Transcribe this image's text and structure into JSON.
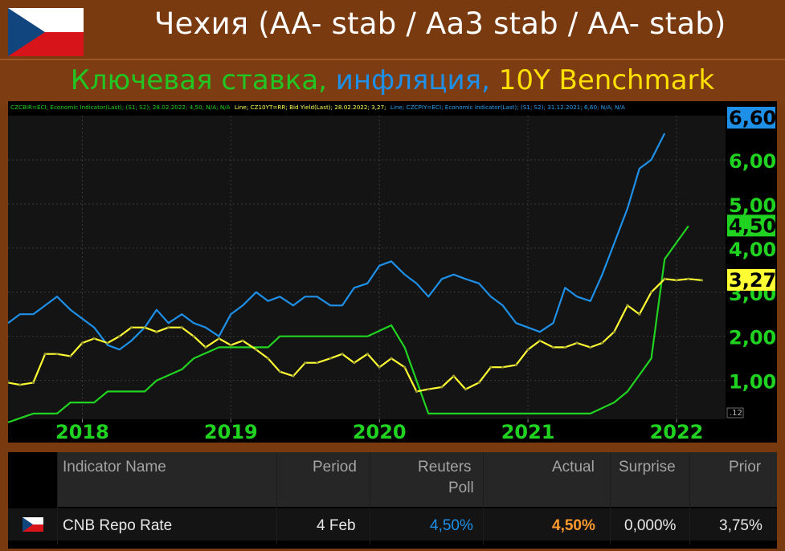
{
  "header": {
    "title": "Чехия (AA- stab / Aa3 stab / AA- stab)",
    "subtitle_part1": "Ключевая ставка,",
    "subtitle_part2": "инфляция,",
    "subtitle_part3": "10Y Benchmark",
    "flag_icon": "czech-flag-icon"
  },
  "chart_legend": {
    "seg1": "CZCBIR=ECI; Economic Indicator(Last); (S1; S2); 28.02.2022; 4,50; N/A; N/A",
    "seg2": "Line; CZ10YT=RR; Bid Yield(Last); 28.02.2022; 3,27;",
    "seg3": "Line; CZCPIY=ECI; Economic Indicator(Last); (S1; S2); 31.12.2021; 6,60; N/A; N/A"
  },
  "chart_data": {
    "type": "line",
    "title": "",
    "xlabel": "",
    "ylabel": "",
    "xlim": [
      2017.5,
      2022.33
    ],
    "ylim": [
      0.12,
      7.0
    ],
    "x_ticks": [
      2018,
      2019,
      2020,
      2021,
      2022
    ],
    "x_tick_labels": [
      "2018",
      "2019",
      "2020",
      "2021",
      "2022"
    ],
    "y_ticks": [
      1,
      2,
      3,
      4,
      5,
      6
    ],
    "y_tick_labels": [
      "1,00",
      "2,00",
      "3,00",
      "4,00",
      "5,00",
      "6,00"
    ],
    "y_min_label": ".12",
    "grid": true,
    "series": [
      {
        "name": "CZCPIY=ECI",
        "color": "#1e90e8",
        "last_label": "6,60",
        "x": [
          2017.5,
          2017.58,
          2017.67,
          2017.75,
          2017.83,
          2017.92,
          2018.0,
          2018.08,
          2018.17,
          2018.25,
          2018.33,
          2018.42,
          2018.5,
          2018.58,
          2018.67,
          2018.75,
          2018.83,
          2018.92,
          2019.0,
          2019.08,
          2019.17,
          2019.25,
          2019.33,
          2019.42,
          2019.5,
          2019.58,
          2019.67,
          2019.75,
          2019.83,
          2019.92,
          2020.0,
          2020.08,
          2020.17,
          2020.25,
          2020.33,
          2020.42,
          2020.5,
          2020.58,
          2020.67,
          2020.75,
          2020.83,
          2020.92,
          2021.0,
          2021.08,
          2021.17,
          2021.25,
          2021.33,
          2021.42,
          2021.5,
          2021.58,
          2021.67,
          2021.75,
          2021.83,
          2021.92
        ],
        "values": [
          2.3,
          2.5,
          2.5,
          2.7,
          2.9,
          2.6,
          2.4,
          2.2,
          1.8,
          1.7,
          1.9,
          2.2,
          2.6,
          2.3,
          2.5,
          2.3,
          2.2,
          2.0,
          2.5,
          2.7,
          3.0,
          2.8,
          2.9,
          2.7,
          2.9,
          2.9,
          2.7,
          2.7,
          3.1,
          3.2,
          3.6,
          3.7,
          3.4,
          3.2,
          2.9,
          3.3,
          3.4,
          3.3,
          3.2,
          2.9,
          2.7,
          2.3,
          2.2,
          2.1,
          2.3,
          3.1,
          2.9,
          2.8,
          3.4,
          4.1,
          4.9,
          5.8,
          6.0,
          6.6
        ]
      },
      {
        "name": "CZCBIR=ECI",
        "color": "#21d321",
        "last_label": "4,50",
        "x": [
          2017.5,
          2017.67,
          2017.75,
          2017.83,
          2017.92,
          2018.0,
          2018.08,
          2018.17,
          2018.42,
          2018.5,
          2018.67,
          2018.75,
          2018.92,
          2019.0,
          2019.25,
          2019.33,
          2019.92,
          2020.08,
          2020.17,
          2020.25,
          2020.33,
          2020.67,
          2020.92,
          2021.33,
          2021.42,
          2021.58,
          2021.67,
          2021.83,
          2021.92,
          2022.08
        ],
        "values": [
          0.05,
          0.25,
          0.25,
          0.25,
          0.5,
          0.5,
          0.5,
          0.75,
          0.75,
          1.0,
          1.25,
          1.5,
          1.75,
          1.75,
          1.75,
          2.0,
          2.0,
          2.25,
          1.75,
          1.0,
          0.25,
          0.25,
          0.25,
          0.25,
          0.25,
          0.5,
          0.75,
          1.5,
          3.75,
          4.5
        ]
      },
      {
        "name": "CZ10YT=RR",
        "color": "#ffff33",
        "last_label": "3,27",
        "x": [
          2017.5,
          2017.58,
          2017.67,
          2017.75,
          2017.83,
          2017.92,
          2018.0,
          2018.08,
          2018.17,
          2018.25,
          2018.33,
          2018.42,
          2018.5,
          2018.58,
          2018.67,
          2018.75,
          2018.83,
          2018.92,
          2019.0,
          2019.08,
          2019.17,
          2019.25,
          2019.33,
          2019.42,
          2019.5,
          2019.58,
          2019.67,
          2019.75,
          2019.83,
          2019.92,
          2020.0,
          2020.08,
          2020.17,
          2020.25,
          2020.33,
          2020.42,
          2020.5,
          2020.58,
          2020.67,
          2020.75,
          2020.83,
          2020.92,
          2021.0,
          2021.08,
          2021.17,
          2021.25,
          2021.33,
          2021.42,
          2021.5,
          2021.58,
          2021.67,
          2021.75,
          2021.83,
          2021.92,
          2022.0,
          2022.08,
          2022.17
        ],
        "values": [
          0.95,
          0.9,
          0.95,
          1.6,
          1.6,
          1.55,
          1.85,
          1.95,
          1.85,
          2.0,
          2.2,
          2.2,
          2.1,
          2.2,
          2.2,
          2.0,
          1.75,
          1.95,
          1.8,
          1.9,
          1.7,
          1.5,
          1.2,
          1.1,
          1.4,
          1.4,
          1.5,
          1.6,
          1.4,
          1.6,
          1.3,
          1.5,
          1.3,
          0.75,
          0.8,
          0.85,
          1.1,
          0.8,
          0.95,
          1.3,
          1.3,
          1.35,
          1.7,
          1.9,
          1.75,
          1.75,
          1.85,
          1.75,
          1.85,
          2.1,
          2.7,
          2.5,
          3.0,
          3.3,
          3.27,
          3.3,
          3.27
        ]
      }
    ]
  },
  "table": {
    "headers": {
      "name": "Indicator Name",
      "period": "Period",
      "poll_line1": "Reuters",
      "poll_line2": "Poll",
      "actual": "Actual",
      "surprise": "Surprise",
      "prior": "Prior"
    },
    "row": {
      "name": "CNB Repo Rate",
      "period": "4 Feb",
      "poll": "4,50%",
      "actual": "4,50%",
      "surprise": "0,000%",
      "prior": "3,75%",
      "flag_icon": "czech-flag-icon"
    },
    "colors": {
      "poll": "#1e90e8",
      "actual": "#ff9a2e"
    }
  }
}
